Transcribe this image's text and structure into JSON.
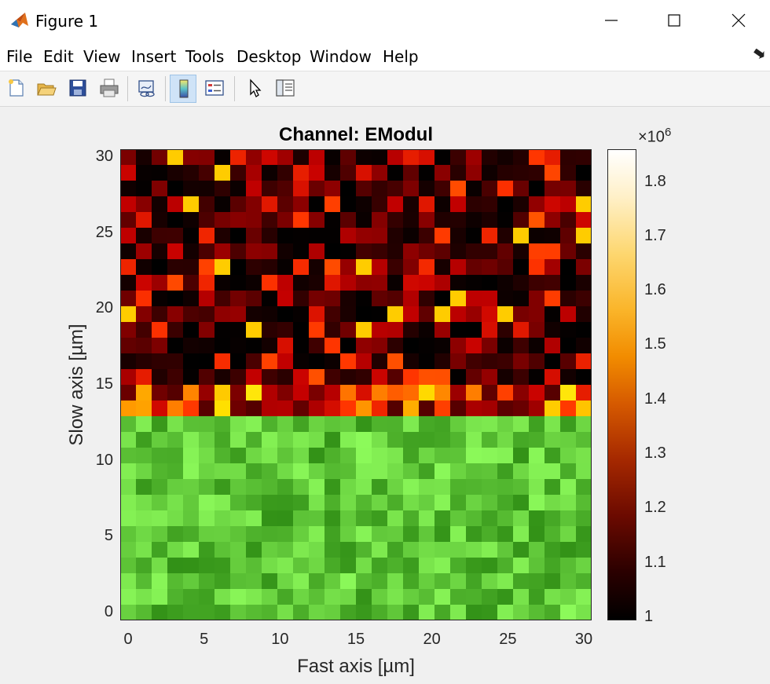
{
  "window": {
    "title": "Figure 1",
    "minimize_icon": "minimize-icon",
    "maximize_icon": "maximize-icon",
    "close_icon": "close-icon"
  },
  "menu": {
    "items": [
      "File",
      "Edit",
      "View",
      "Insert",
      "Tools",
      "Desktop",
      "Window",
      "Help"
    ]
  },
  "toolbar": {
    "icons": [
      "new-figure-icon",
      "open-file-icon",
      "save-icon",
      "print-icon",
      "link-plot-icon",
      "colorbar-toggle-icon",
      "legend-toggle-icon",
      "edit-plot-pointer-icon",
      "property-inspector-icon"
    ]
  },
  "chart_data": {
    "type": "heatmap",
    "title": "Channel: EModul",
    "xlabel": "Fast axis [µm]",
    "ylabel": "Slow axis [µm]",
    "xlim": [
      0,
      30
    ],
    "ylim": [
      0,
      30
    ],
    "xticks": [
      "0",
      "5",
      "10",
      "15",
      "20",
      "25",
      "30"
    ],
    "yticks": [
      "0",
      "5",
      "10",
      "15",
      "20",
      "25",
      "30"
    ],
    "grid_size": [
      30,
      30
    ],
    "lower_region": {
      "rows": "y 0–11",
      "color": "green"
    },
    "upper_region": {
      "rows": "y 12–30",
      "colormap": "hot"
    },
    "colorbar": {
      "exponent_label": "×10",
      "exponent_power": "6",
      "ticks": [
        "1",
        "1.1",
        "1.2",
        "1.3",
        "1.4",
        "1.5",
        "1.6",
        "1.7",
        "1.8"
      ],
      "range": [
        1.0,
        1.86
      ]
    },
    "colors": {
      "high": "#ffffff",
      "low": "#000000",
      "green_mid": "#5ecf1a"
    }
  }
}
